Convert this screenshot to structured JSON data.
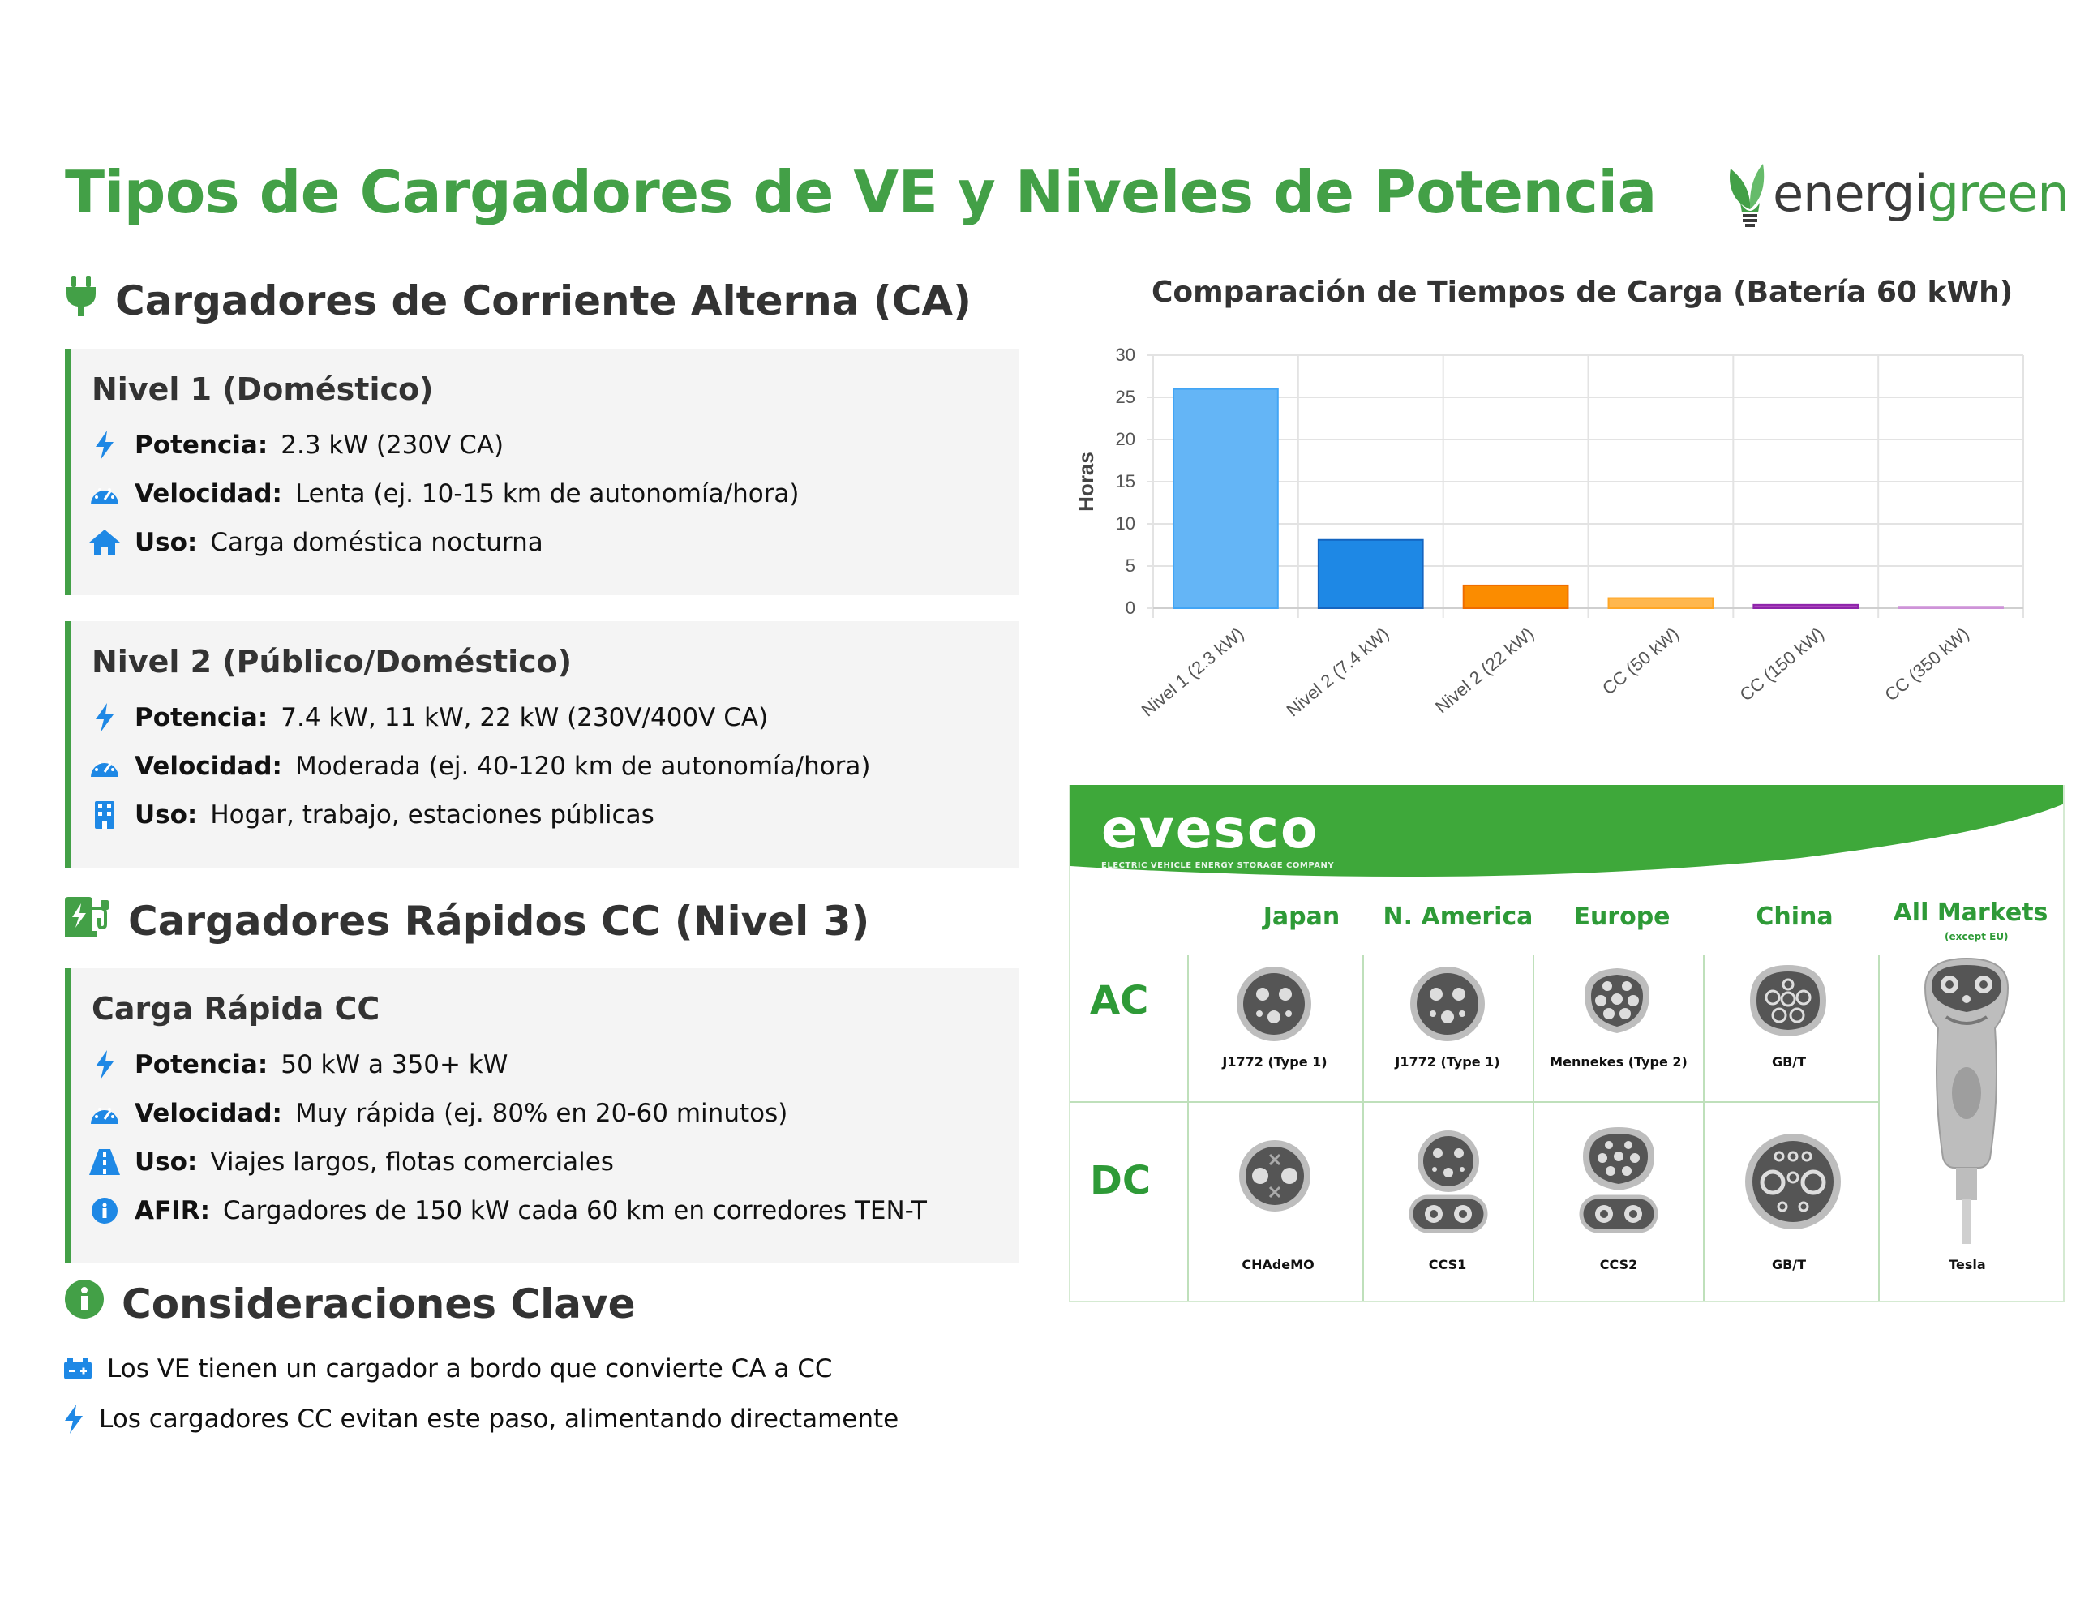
{
  "page": {
    "title": "Tipos de Cargadores de VE y Niveles de Potencia",
    "logo": {
      "part1": "energi",
      "part2": "green"
    }
  },
  "ac_section": {
    "heading": "Cargadores de Corriente Alterna (CA)",
    "icon": "plug-icon",
    "cards": [
      {
        "title": "Nivel 1 (Doméstico)",
        "rows": [
          {
            "icon": "bolt-icon",
            "label": "Potencia:",
            "value": "2.3 kW (230V CA)"
          },
          {
            "icon": "gauge-icon",
            "label": "Velocidad:",
            "value": "Lenta (ej. 10-15 km de autonomía/hora)"
          },
          {
            "icon": "home-icon",
            "label": "Uso:",
            "value": "Carga doméstica nocturna"
          }
        ]
      },
      {
        "title": "Nivel 2 (Público/Doméstico)",
        "rows": [
          {
            "icon": "bolt-icon",
            "label": "Potencia:",
            "value": "7.4 kW, 11 kW, 22 kW (230V/400V CA)"
          },
          {
            "icon": "gauge-icon",
            "label": "Velocidad:",
            "value": "Moderada (ej. 40-120 km de autonomía/hora)"
          },
          {
            "icon": "building-icon",
            "label": "Uso:",
            "value": "Hogar, trabajo, estaciones públicas"
          }
        ]
      }
    ]
  },
  "dc_section": {
    "heading": "Cargadores Rápidos CC (Nivel 3)",
    "icon": "charging-station-icon",
    "card": {
      "title": "Carga Rápida CC",
      "rows": [
        {
          "icon": "bolt-icon",
          "label": "Potencia:",
          "value": "50 kW a 350+ kW"
        },
        {
          "icon": "gauge-icon",
          "label": "Velocidad:",
          "value": "Muy rápida (ej. 80% en 20-60 minutos)"
        },
        {
          "icon": "road-icon",
          "label": "Uso:",
          "value": "Viajes largos, flotas comerciales"
        },
        {
          "icon": "info-icon",
          "label": "AFIR:",
          "value": "Cargadores de 150 kW cada 60 km en corredores TEN-T"
        }
      ]
    }
  },
  "key_section": {
    "heading": "Consideraciones Clave",
    "icon": "info-circle-icon",
    "items": [
      {
        "icon": "battery-icon",
        "text": "Los VE tienen un cargador a bordo que convierte CA a CC"
      },
      {
        "icon": "bolt-icon",
        "text": "Los cargadores CC evitan este paso, alimentando directamente"
      }
    ]
  },
  "chart_data": {
    "type": "bar",
    "title": "Comparación de Tiempos de Carga (Batería 60 kWh)",
    "ylabel": "Horas",
    "xlabel": "",
    "ylim": [
      0,
      30
    ],
    "yticks": [
      0,
      5,
      10,
      15,
      20,
      25,
      30
    ],
    "grid": true,
    "categories": [
      "Nivel 1 (2.3 kW)",
      "Nivel 2 (7.4 kW)",
      "Nivel 2 (22 kW)",
      "CC (50 kW)",
      "CC (150 kW)",
      "CC (350 kW)"
    ],
    "values": [
      26,
      8.1,
      2.7,
      1.2,
      0.4,
      0.17
    ],
    "colors": [
      "#64b5f6",
      "#1e88e5",
      "#fb8c00",
      "#ffb74d",
      "#ab47bc",
      "#e1bee7"
    ],
    "borders": [
      "#42a5f5",
      "#1565c0",
      "#ef6c00",
      "#ffa726",
      "#8e24aa",
      "#ce93d8"
    ]
  },
  "connector_image": {
    "logo": "evesco",
    "tagline": "ELECTRIC VEHICLE ENERGY STORAGE COMPANY",
    "regions": [
      "Japan",
      "N. America",
      "Europe",
      "China",
      "All Markets"
    ],
    "all_markets_note": "(except EU)",
    "rows": [
      "AC",
      "DC"
    ],
    "ac_plugs": [
      "J1772 (Type 1)",
      "J1772 (Type 1)",
      "Mennekes (Type 2)",
      "GB/T"
    ],
    "dc_plugs": [
      "CHAdeMO",
      "CCS1",
      "CCS2",
      "GB/T"
    ],
    "tesla": "Tesla",
    "brand_green": "#3ea83a"
  }
}
